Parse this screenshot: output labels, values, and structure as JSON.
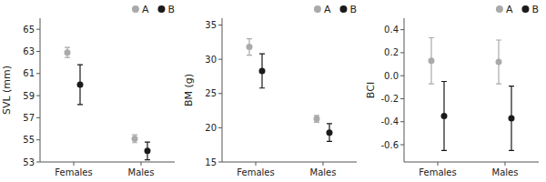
{
  "chart_data": [
    {
      "type": "errorbar",
      "y_label": "SVL (mm)",
      "categories": [
        "Females",
        "Males"
      ],
      "series": [
        {
          "name": "A",
          "color": "#aaaaaa",
          "values": [
            62.9,
            55.1
          ],
          "errors": [
            0.45,
            0.35
          ]
        },
        {
          "name": "B",
          "color": "#1a1a1a",
          "values": [
            60.0,
            54.0
          ],
          "errors": [
            1.8,
            0.8
          ]
        }
      ],
      "ylim": [
        53,
        66
      ],
      "yticks": [
        53,
        55,
        57,
        59,
        61,
        63,
        65
      ],
      "grid": false,
      "legend": "upper right"
    },
    {
      "type": "errorbar",
      "y_label": "BM (g)",
      "categories": [
        "Females",
        "Males"
      ],
      "series": [
        {
          "name": "A",
          "color": "#aaaaaa",
          "values": [
            31.8,
            21.3
          ],
          "errors": [
            1.2,
            0.5
          ]
        },
        {
          "name": "B",
          "color": "#1a1a1a",
          "values": [
            28.3,
            19.3
          ],
          "errors": [
            2.5,
            1.3
          ]
        }
      ],
      "ylim": [
        15,
        36
      ],
      "yticks": [
        15,
        20,
        25,
        30,
        35
      ],
      "grid": false,
      "legend": "upper right"
    },
    {
      "type": "errorbar",
      "y_label": "BCI",
      "categories": [
        "Females",
        "Males"
      ],
      "series": [
        {
          "name": "A",
          "color": "#aaaaaa",
          "values": [
            0.13,
            0.12
          ],
          "errors": [
            0.2,
            0.19
          ]
        },
        {
          "name": "B",
          "color": "#1a1a1a",
          "values": [
            -0.35,
            -0.37
          ],
          "errors": [
            0.3,
            0.28
          ]
        }
      ],
      "ylim": [
        -0.75,
        0.5
      ],
      "yticks": [
        -0.6,
        -0.4,
        -0.2,
        {
          "value": 0.0,
          "label": "0.0"
        },
        0.2,
        0.4
      ],
      "grid": false,
      "legend": "upper right"
    }
  ]
}
